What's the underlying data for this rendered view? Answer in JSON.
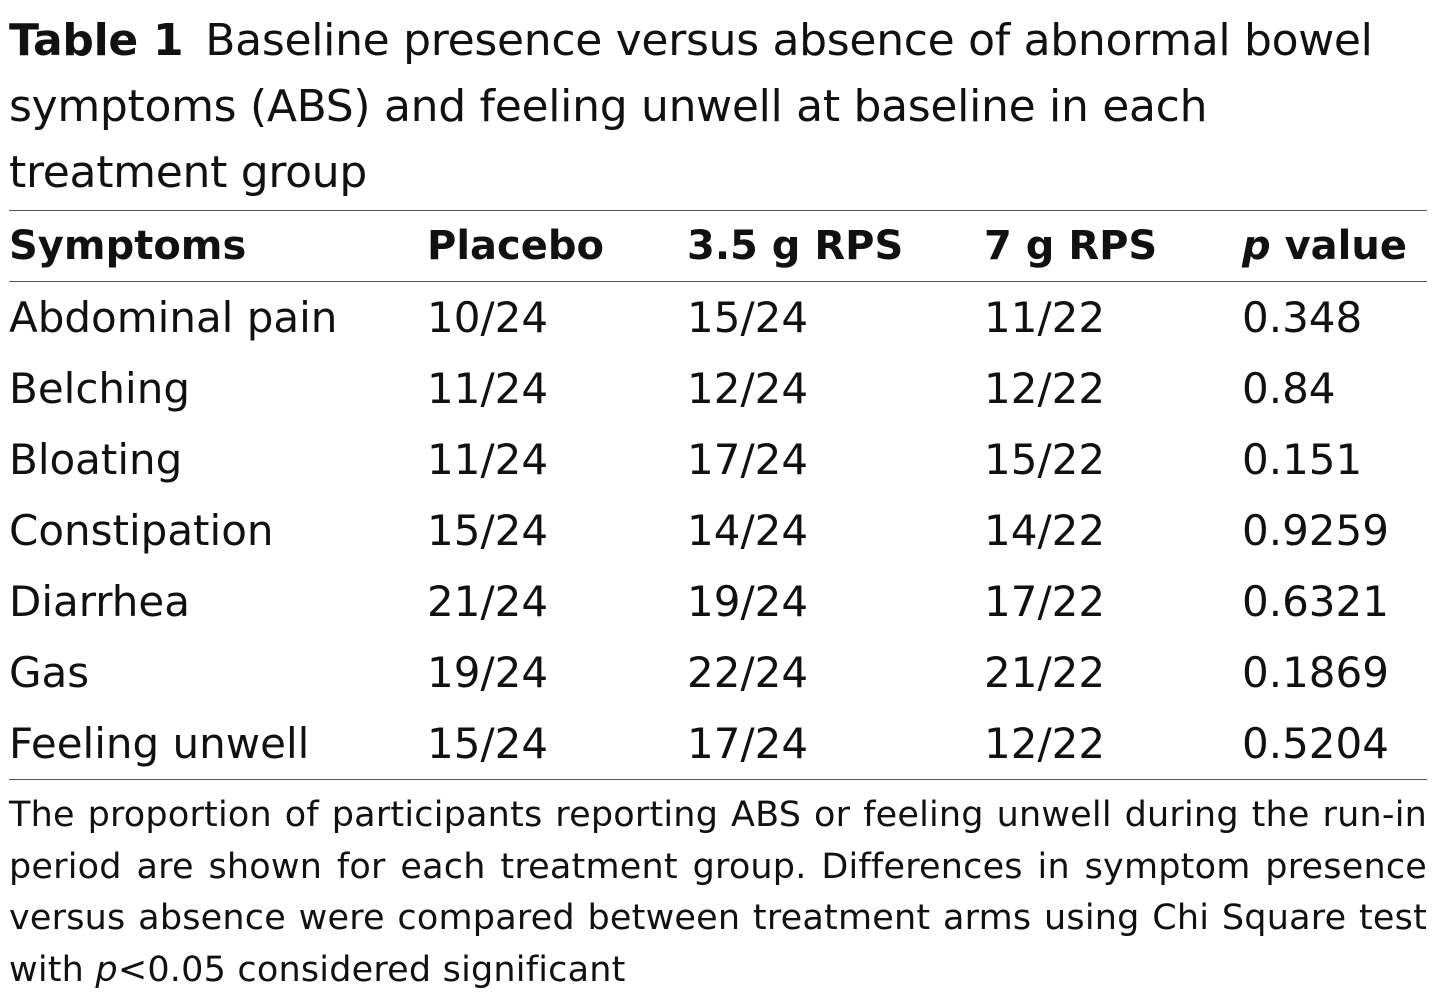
{
  "caption": {
    "label": "Table 1",
    "text": "Baseline presence versus absence of abnormal bowel symptoms (ABS) and feeling unwell at baseline in each treatment group"
  },
  "table": {
    "headers": {
      "symptoms": "Symptoms",
      "placebo": "Placebo",
      "rps35": "3.5 g RPS",
      "rps7": "7 g RPS",
      "p_italic": "p",
      "p_rest": " value"
    },
    "rows": [
      {
        "symptom": "Abdominal pain",
        "placebo": "10/24",
        "rps35": "15/24",
        "rps7": "11/22",
        "p": "0.348"
      },
      {
        "symptom": "Belching",
        "placebo": "11/24",
        "rps35": "12/24",
        "rps7": "12/22",
        "p": "0.84"
      },
      {
        "symptom": "Bloating",
        "placebo": "11/24",
        "rps35": "17/24",
        "rps7": "15/22",
        "p": "0.151"
      },
      {
        "symptom": "Constipation",
        "placebo": "15/24",
        "rps35": "14/24",
        "rps7": "14/22",
        "p": "0.9259"
      },
      {
        "symptom": "Diarrhea",
        "placebo": "21/24",
        "rps35": "19/24",
        "rps7": "17/22",
        "p": "0.6321"
      },
      {
        "symptom": "Gas",
        "placebo": "19/24",
        "rps35": "22/24",
        "rps7": "21/22",
        "p": "0.1869"
      },
      {
        "symptom": "Feeling unwell",
        "placebo": "15/24",
        "rps35": "17/24",
        "rps7": "12/22",
        "p": "0.5204"
      }
    ]
  },
  "footnote": {
    "part1": "The proportion of participants reporting ABS or feeling unwell during the run-in period are shown for each treatment group. Differences in symptom presence versus absence were compared between treatment arms using Chi Square test with ",
    "p_italic": "p",
    "part2": "<0.05 considered significant"
  }
}
